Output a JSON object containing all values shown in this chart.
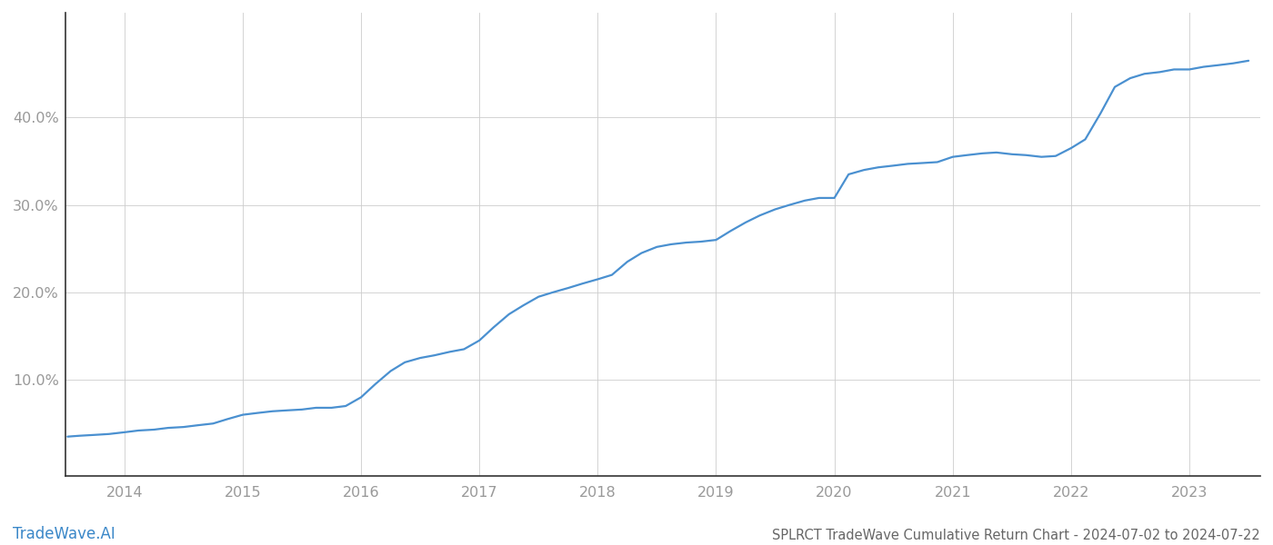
{
  "title": "SPLRCT TradeWave Cumulative Return Chart - 2024-07-02 to 2024-07-22",
  "watermark": "TradeWave.AI",
  "line_color": "#4a90d0",
  "background_color": "#ffffff",
  "grid_color": "#cccccc",
  "x_years": [
    2014,
    2015,
    2016,
    2017,
    2018,
    2019,
    2020,
    2021,
    2022,
    2023
  ],
  "x_data": [
    2013.52,
    2013.62,
    2013.75,
    2013.87,
    2014.0,
    2014.12,
    2014.25,
    2014.37,
    2014.5,
    2014.62,
    2014.75,
    2014.87,
    2015.0,
    2015.12,
    2015.25,
    2015.37,
    2015.5,
    2015.62,
    2015.75,
    2015.87,
    2016.0,
    2016.12,
    2016.25,
    2016.37,
    2016.5,
    2016.62,
    2016.75,
    2016.87,
    2017.0,
    2017.12,
    2017.25,
    2017.37,
    2017.5,
    2017.62,
    2017.75,
    2017.87,
    2018.0,
    2018.12,
    2018.25,
    2018.37,
    2018.5,
    2018.62,
    2018.75,
    2018.87,
    2019.0,
    2019.12,
    2019.25,
    2019.37,
    2019.5,
    2019.62,
    2019.75,
    2019.87,
    2020.0,
    2020.12,
    2020.25,
    2020.37,
    2020.5,
    2020.62,
    2020.75,
    2020.87,
    2021.0,
    2021.12,
    2021.25,
    2021.37,
    2021.5,
    2021.62,
    2021.75,
    2021.87,
    2022.0,
    2022.12,
    2022.25,
    2022.37,
    2022.5,
    2022.62,
    2022.75,
    2022.87,
    2023.0,
    2023.12,
    2023.25,
    2023.37,
    2023.5
  ],
  "y_data": [
    3.5,
    3.6,
    3.7,
    3.8,
    4.0,
    4.2,
    4.3,
    4.5,
    4.6,
    4.8,
    5.0,
    5.5,
    6.0,
    6.2,
    6.4,
    6.5,
    6.6,
    6.8,
    6.8,
    7.0,
    8.0,
    9.5,
    11.0,
    12.0,
    12.5,
    12.8,
    13.2,
    13.5,
    14.5,
    16.0,
    17.5,
    18.5,
    19.5,
    20.0,
    20.5,
    21.0,
    21.5,
    22.0,
    23.5,
    24.5,
    25.2,
    25.5,
    25.7,
    25.8,
    26.0,
    27.0,
    28.0,
    28.8,
    29.5,
    30.0,
    30.5,
    30.8,
    30.8,
    33.5,
    34.0,
    34.3,
    34.5,
    34.7,
    34.8,
    34.9,
    35.5,
    35.7,
    35.9,
    36.0,
    35.8,
    35.7,
    35.5,
    35.6,
    36.5,
    37.5,
    40.5,
    43.5,
    44.5,
    45.0,
    45.2,
    45.5,
    45.5,
    45.8,
    46.0,
    46.2,
    46.5
  ],
  "yticks": [
    10.0,
    20.0,
    30.0,
    40.0
  ],
  "ylim": [
    -1,
    52
  ],
  "xlim": [
    2013.5,
    2023.6
  ],
  "tick_color": "#999999",
  "title_color": "#666666",
  "watermark_color": "#3a87c8",
  "title_fontsize": 10.5,
  "tick_fontsize": 11.5,
  "watermark_fontsize": 12,
  "line_width": 1.6
}
